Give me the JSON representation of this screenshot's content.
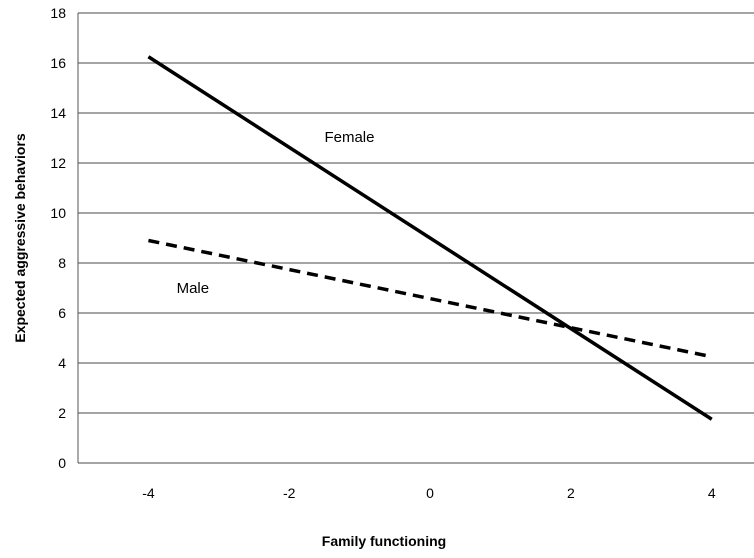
{
  "chart_data": {
    "type": "line",
    "title": "",
    "xlabel": "Family functioning",
    "ylabel": "Expected aggressive behaviors",
    "xlim": [
      -5,
      4.6
    ],
    "ylim": [
      0,
      18
    ],
    "x_ticks": [
      -4,
      -2,
      0,
      2,
      4
    ],
    "y_ticks": [
      0,
      2,
      4,
      6,
      8,
      10,
      12,
      14,
      16,
      18
    ],
    "grid": "horizontal",
    "legend": "none",
    "series": [
      {
        "name": "Female",
        "x": [
          -4,
          4
        ],
        "values": [
          16.25,
          1.75
        ],
        "line_style": "solid",
        "color": "#000000",
        "label_at": [
          -1.5,
          12.85
        ]
      },
      {
        "name": "Male",
        "x": [
          -4,
          4
        ],
        "values": [
          8.9,
          4.25
        ],
        "line_style": "dashed",
        "color": "#000000",
        "label_at": [
          -3.6,
          6.8
        ]
      }
    ]
  }
}
